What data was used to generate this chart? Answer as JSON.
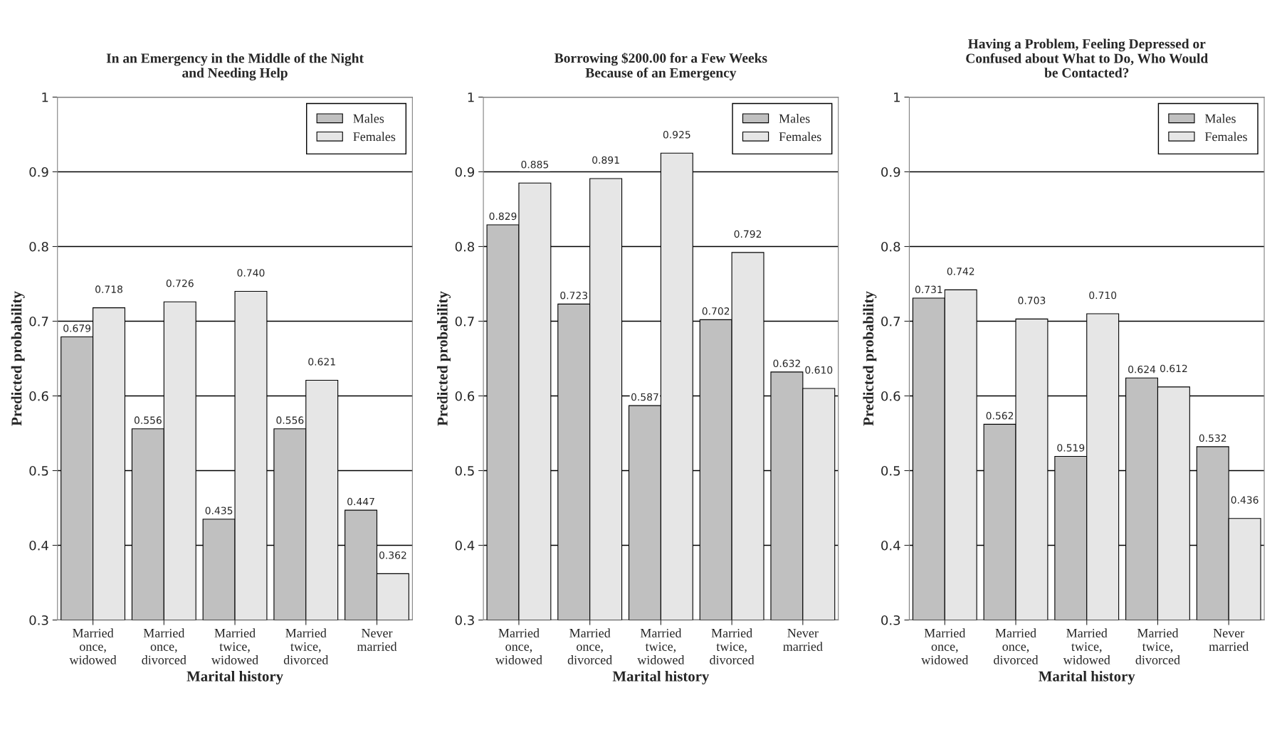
{
  "chart_data": [
    {
      "type": "bar",
      "title": "In an Emergency in the Middle of the Night\nand Needing Help",
      "xlabel": "Marital history",
      "ylabel": "Predicted probability",
      "categories": [
        "Married\nonce,\nwidowed",
        "Married\nonce,\ndivorced",
        "Married\ntwice,\nwidowed",
        "Married\ntwice,\ndivorced",
        "Never\nmarried"
      ],
      "series": [
        {
          "name": "Males",
          "color": "#c0c0c0",
          "values": [
            0.679,
            0.556,
            0.435,
            0.556,
            0.447
          ],
          "value_labels": [
            "0.679",
            "0.556",
            "0.435",
            "0.556",
            "0.447"
          ]
        },
        {
          "name": "Females",
          "color": "#e6e6e6",
          "values": [
            0.718,
            0.726,
            0.74,
            0.621,
            0.362
          ],
          "value_labels": [
            "0.718",
            "0.726",
            "0.740",
            "0.621",
            "0.362"
          ]
        }
      ],
      "ylim": [
        0.3,
        1
      ],
      "yticks": [
        0.3,
        0.4,
        0.5,
        0.6,
        0.7,
        0.8,
        0.9,
        1
      ],
      "grid": "y",
      "legend": "top right"
    },
    {
      "type": "bar",
      "title": "Borrowing $200.00 for a Few Weeks\nBecause of an Emergency",
      "xlabel": "Marital history",
      "ylabel": "Predicted probability",
      "categories": [
        "Married\nonce,\nwidowed",
        "Married\nonce,\ndivorced",
        "Married\ntwice,\nwidowed",
        "Married\ntwice,\ndivorced",
        "Never\nmarried"
      ],
      "series": [
        {
          "name": "Males",
          "color": "#c0c0c0",
          "values": [
            0.829,
            0.723,
            0.587,
            0.702,
            0.632
          ],
          "value_labels": [
            "0.829",
            "0.723",
            "0.587",
            "0.702",
            "0.632"
          ]
        },
        {
          "name": "Females",
          "color": "#e6e6e6",
          "values": [
            0.885,
            0.891,
            0.925,
            0.792,
            0.61
          ],
          "value_labels": [
            "0.885",
            "0.891",
            "0.925",
            "0.792",
            "0.610"
          ]
        }
      ],
      "ylim": [
        0.3,
        1
      ],
      "yticks": [
        0.3,
        0.4,
        0.5,
        0.6,
        0.7,
        0.8,
        0.9,
        1
      ],
      "grid": "y",
      "legend": "top right"
    },
    {
      "type": "bar",
      "title": "Having a Problem, Feeling Depressed or\nConfused about What to Do, Who Would\nbe Contacted?",
      "xlabel": "Marital history",
      "ylabel": "Predicted probability",
      "categories": [
        "Married\nonce,\nwidowed",
        "Married\nonce,\ndivorced",
        "Married\ntwice,\nwidowed",
        "Married\ntwice,\ndivorced",
        "Never\nmarried"
      ],
      "series": [
        {
          "name": "Males",
          "color": "#c0c0c0",
          "values": [
            0.731,
            0.562,
            0.519,
            0.624,
            0.532
          ],
          "value_labels": [
            "0.731",
            "0.562",
            "0.519",
            "0.624",
            "0.532"
          ]
        },
        {
          "name": "Females",
          "color": "#e6e6e6",
          "values": [
            0.742,
            0.703,
            0.71,
            0.612,
            0.436
          ],
          "value_labels": [
            "0.742",
            "0.703",
            "0.710",
            "0.612",
            "0.436"
          ]
        }
      ],
      "ylim": [
        0.3,
        1
      ],
      "yticks": [
        0.3,
        0.4,
        0.5,
        0.6,
        0.7,
        0.8,
        0.9,
        1
      ],
      "grid": "y",
      "legend": "top right"
    }
  ]
}
